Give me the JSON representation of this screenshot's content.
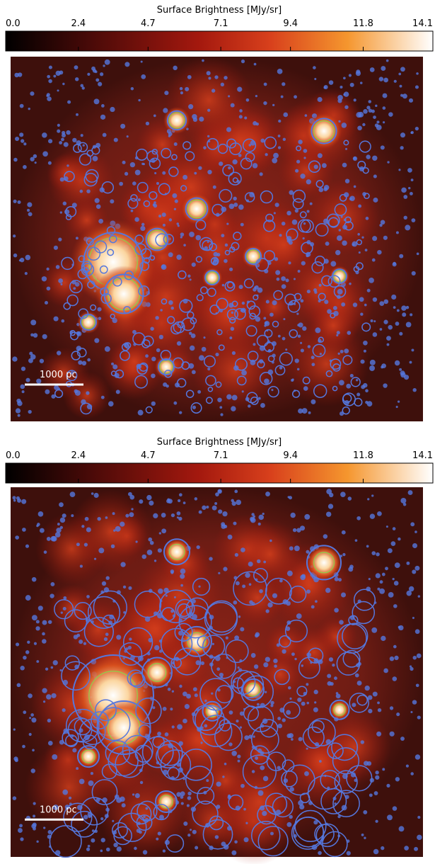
{
  "chart_data": [
    {
      "type": "image",
      "colorbar_label": "Surface Brightness [MJy/sr]",
      "clim": [
        0,
        14.1
      ],
      "cticks": [
        {
          "value": 0,
          "label": "0.0"
        },
        2.4,
        4.7,
        7.1,
        9.4,
        11.8,
        14.1
      ],
      "scale_bar": "1000 pc"
    },
    {
      "type": "image",
      "colorbar_label": "Surface Brightness [MJy/sr]",
      "clim": [
        0,
        14.1
      ],
      "cticks": [
        {
          "value": 0,
          "label": "0.0"
        },
        2.4,
        4.7,
        7.1,
        9.4,
        11.8,
        14.1
      ],
      "scale_bar": "1000 pc"
    }
  ]
}
